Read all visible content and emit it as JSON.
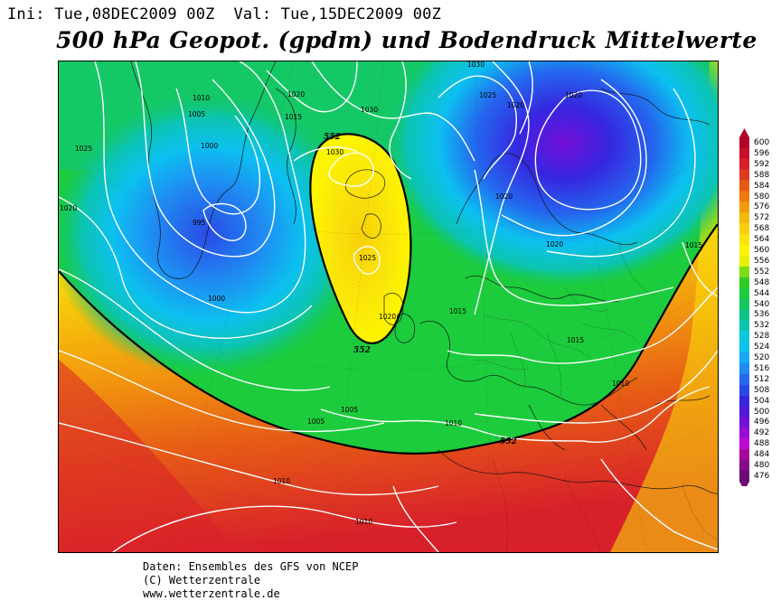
{
  "header": {
    "init_label": "Ini:",
    "init_time": "Tue,08DEC2009 00Z",
    "valid_label": "Val:",
    "valid_time": "Tue,15DEC2009 00Z"
  },
  "title": "500 hPa Geopot. (gpdm) und Bodendruck Mittelwerte",
  "credits": {
    "line1": "Daten: Ensembles des GFS von NCEP",
    "line2": "(C) Wetterzentrale",
    "line3": "www.wetterzentrale.de"
  },
  "legend": {
    "levels": [
      "600",
      "596",
      "592",
      "588",
      "584",
      "580",
      "576",
      "572",
      "568",
      "564",
      "560",
      "556",
      "552",
      "548",
      "544",
      "540",
      "536",
      "532",
      "528",
      "524",
      "520",
      "516",
      "512",
      "508",
      "504",
      "500",
      "496",
      "492",
      "488",
      "484",
      "480",
      "476"
    ],
    "colors": [
      "#b5002a",
      "#c8102e",
      "#d8202a",
      "#e03a1c",
      "#e65a16",
      "#ee7a10",
      "#f29a0e",
      "#f5b80c",
      "#f8d00a",
      "#fae40a",
      "#fdf500",
      "#e8f200",
      "#7edc16",
      "#2fcc26",
      "#1ccc3c",
      "#14c65e",
      "#0fc486",
      "#0cc4b0",
      "#0cc8dc",
      "#0cc0f0",
      "#16aaf6",
      "#1f8cf2",
      "#2468ee",
      "#2a4ae6",
      "#3626e0",
      "#5018d6",
      "#7410d8",
      "#9a0cd8",
      "#bc08d2",
      "#a4089c",
      "#880c8a",
      "#6c0a78"
    ]
  },
  "map_labels": {
    "isobars": [
      {
        "text": "1030"
      },
      {
        "text": "1025"
      },
      {
        "text": "1020"
      },
      {
        "text": "1020"
      },
      {
        "text": "1010"
      },
      {
        "text": "1005"
      },
      {
        "text": "1000"
      },
      {
        "text": "1025"
      },
      {
        "text": "1020"
      },
      {
        "text": "995"
      },
      {
        "text": "1020"
      },
      {
        "text": "1015"
      },
      {
        "text": "1030"
      },
      {
        "text": "1030"
      },
      {
        "text": "1025"
      },
      {
        "text": "1020"
      },
      {
        "text": "1015"
      },
      {
        "text": "1020"
      },
      {
        "text": "1020"
      },
      {
        "text": "1015"
      },
      {
        "text": "1000"
      },
      {
        "text": "1015"
      },
      {
        "text": "1010"
      },
      {
        "text": "1005"
      },
      {
        "text": "1005"
      },
      {
        "text": "1010"
      },
      {
        "text": "1010"
      },
      {
        "text": "1010"
      }
    ],
    "contour_552": [
      "552",
      "552",
      "552"
    ]
  }
}
